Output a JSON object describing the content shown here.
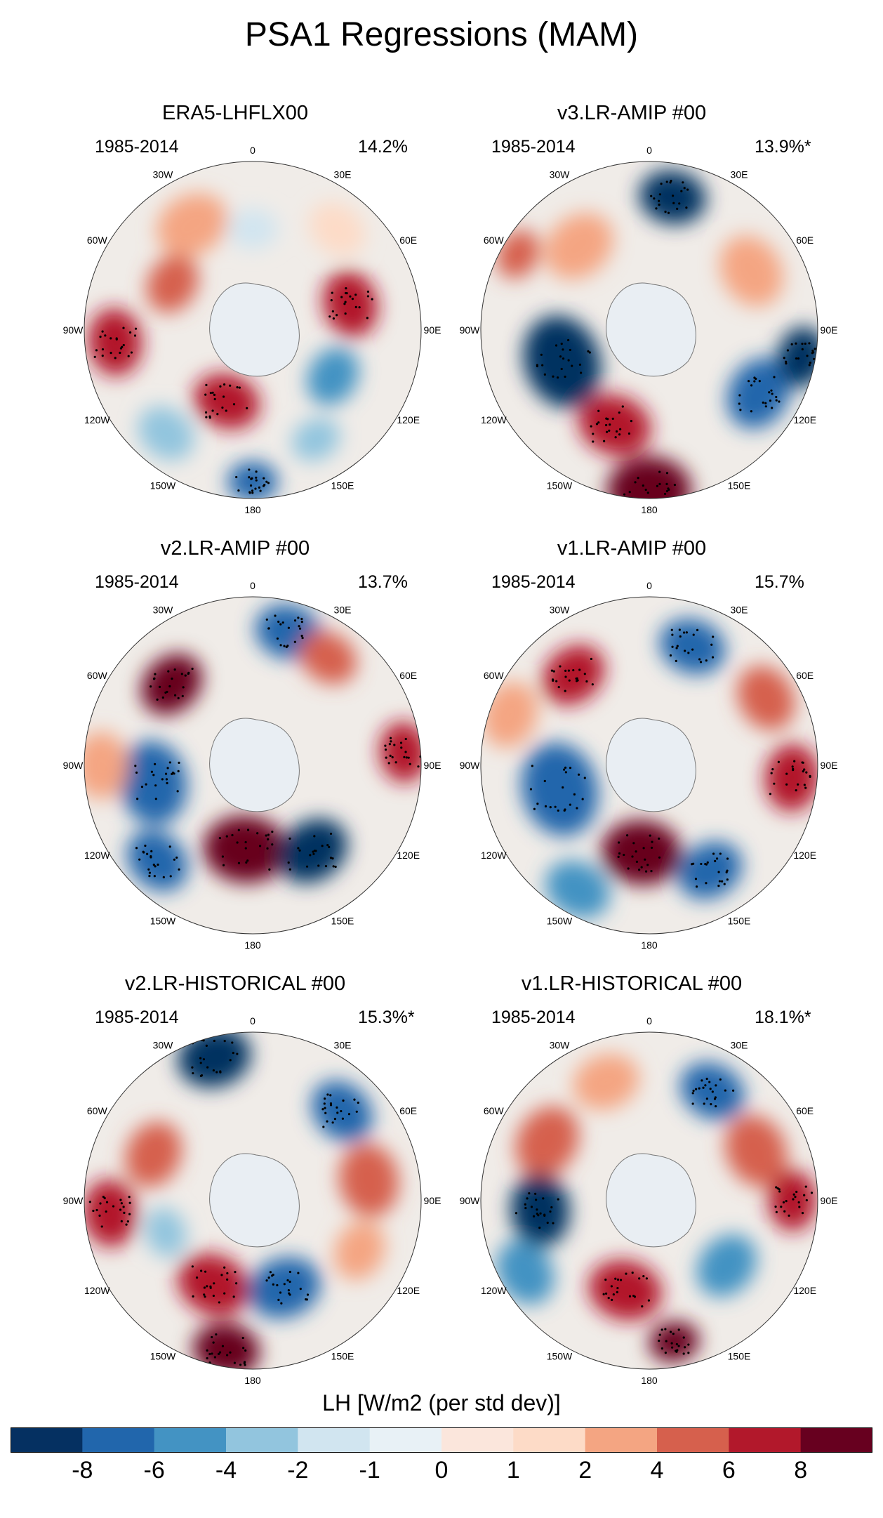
{
  "title": "PSA1 Regressions (MAM)",
  "panels": [
    {
      "title": "ERA5-LHFLX00",
      "years": "1985-2014",
      "percent": "14.2%"
    },
    {
      "title": "v3.LR-AMIP  #00",
      "years": "1985-2014",
      "percent": "13.9%*"
    },
    {
      "title": "v2.LR-AMIP  #00",
      "years": "1985-2014",
      "percent": "13.7%"
    },
    {
      "title": "v1.LR-AMIP  #00",
      "years": "1985-2014",
      "percent": "15.7%"
    },
    {
      "title": "v2.LR-HISTORICAL  #00",
      "years": "1985-2014",
      "percent": "15.3%*"
    },
    {
      "title": "v1.LR-HISTORICAL  #00",
      "years": "1985-2014",
      "percent": "18.1%*"
    }
  ],
  "longitude_labels": [
    "0",
    "30E",
    "60E",
    "90E",
    "120E",
    "150E",
    "180",
    "150W",
    "120W",
    "90W",
    "60W",
    "30W"
  ],
  "colorbar": {
    "title": "LH [W/m2 (per std dev)]",
    "labels": [
      "-8",
      "-6",
      "-4",
      "-2",
      "-1",
      "0",
      "1",
      "2",
      "4",
      "6",
      "8"
    ],
    "colors": [
      "#053061",
      "#2166ac",
      "#4393c3",
      "#92c5de",
      "#d1e5f0",
      "#e8f1f6",
      "#fbe6dc",
      "#fddbc7",
      "#f4a582",
      "#d6604d",
      "#b2182b",
      "#67001f"
    ]
  }
}
